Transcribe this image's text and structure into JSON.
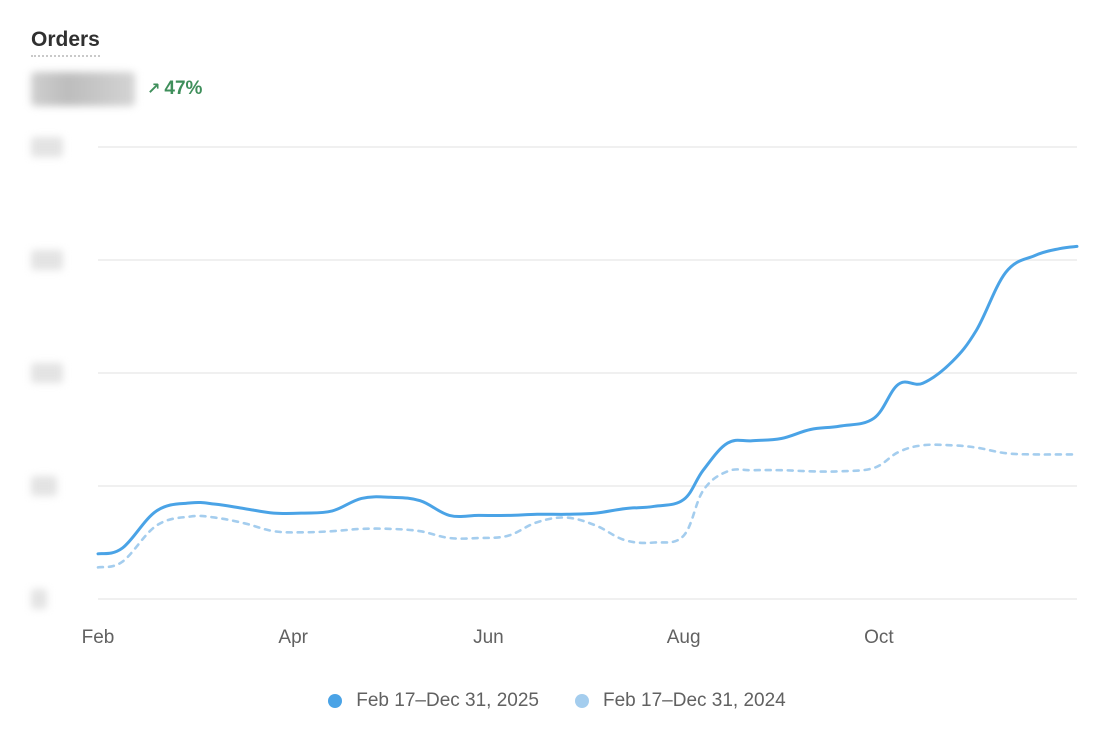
{
  "header": {
    "title": "Orders",
    "change_arrow": "↗",
    "change_value": "47%",
    "change_color": "#3f8f5b",
    "total_icon": "blurred-total-value"
  },
  "colors": {
    "current": "#4aa3e6",
    "previous": "#a4cdee",
    "grid": "#e6e6e6",
    "tick": "#616161"
  },
  "chart_data": {
    "type": "line",
    "title": "Orders",
    "x_tick_labels": [
      "Feb",
      "Apr",
      "Jun",
      "Aug",
      "Oct"
    ],
    "x_tick_values": [
      0,
      2,
      4,
      6,
      8
    ],
    "x_range": [
      0,
      10.03
    ],
    "y_range": [
      0,
      4
    ],
    "y_tick_values": [
      0,
      1,
      2,
      3,
      4
    ],
    "y_tick_labels_obscured": true,
    "grid": true,
    "legend_position": "bottom",
    "series": [
      {
        "name": "Feb 17–Dec 31, 2025",
        "style": "solid",
        "x": [
          0,
          0.25,
          0.6,
          0.95,
          1.2,
          1.5,
          1.8,
          2.1,
          2.4,
          2.7,
          3.0,
          3.3,
          3.6,
          3.9,
          4.2,
          4.5,
          4.8,
          5.1,
          5.4,
          5.7,
          6.0,
          6.2,
          6.45,
          6.7,
          7.0,
          7.3,
          7.6,
          7.95,
          8.2,
          8.45,
          8.75,
          9.0,
          9.3,
          9.6,
          9.85,
          10.03
        ],
        "values": [
          0.4,
          0.45,
          0.78,
          0.85,
          0.84,
          0.8,
          0.76,
          0.76,
          0.78,
          0.89,
          0.9,
          0.87,
          0.74,
          0.74,
          0.74,
          0.75,
          0.75,
          0.76,
          0.8,
          0.82,
          0.88,
          1.14,
          1.38,
          1.4,
          1.42,
          1.5,
          1.53,
          1.6,
          1.9,
          1.91,
          2.1,
          2.38,
          2.89,
          3.04,
          3.1,
          3.12
        ]
      },
      {
        "name": "Feb 17–Dec 31, 2024",
        "style": "dashed",
        "x": [
          0,
          0.25,
          0.6,
          0.95,
          1.2,
          1.5,
          1.8,
          2.1,
          2.4,
          2.7,
          3.0,
          3.3,
          3.6,
          3.9,
          4.2,
          4.5,
          4.8,
          5.1,
          5.4,
          5.7,
          6.0,
          6.2,
          6.45,
          6.7,
          7.0,
          7.3,
          7.6,
          7.95,
          8.2,
          8.45,
          8.75,
          9.0,
          9.3,
          9.6,
          9.85,
          10.03
        ],
        "values": [
          0.28,
          0.33,
          0.65,
          0.73,
          0.72,
          0.67,
          0.6,
          0.59,
          0.6,
          0.62,
          0.62,
          0.6,
          0.54,
          0.54,
          0.56,
          0.68,
          0.72,
          0.65,
          0.52,
          0.5,
          0.56,
          0.96,
          1.13,
          1.14,
          1.14,
          1.13,
          1.13,
          1.16,
          1.3,
          1.36,
          1.36,
          1.34,
          1.29,
          1.28,
          1.28,
          1.28
        ]
      }
    ]
  }
}
